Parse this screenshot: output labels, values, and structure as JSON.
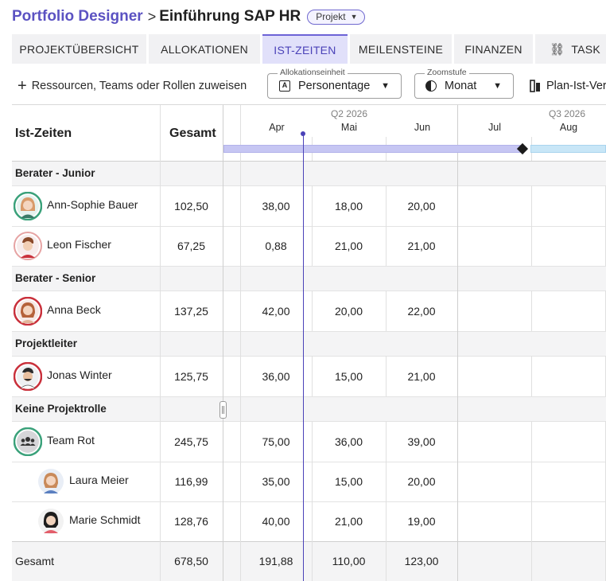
{
  "header": {
    "portfolio_link": "Portfolio Designer",
    "separator": ">",
    "project_title": "Einführung SAP HR",
    "badge_label": "Projekt"
  },
  "tabs": [
    {
      "label": "PROJEKTÜBERSICHT",
      "active": false
    },
    {
      "label": "ALLOKATIONEN",
      "active": false
    },
    {
      "label": "IST-ZEITEN",
      "active": true
    },
    {
      "label": "MEILENSTEINE",
      "active": false
    },
    {
      "label": "FINANZEN",
      "active": false
    },
    {
      "label": "TASK",
      "active": false,
      "icon": "link-icon"
    }
  ],
  "toolbar": {
    "assign_label": "Ressourcen, Teams oder Rollen zuweisen",
    "allocation_unit": {
      "label": "Allokationseinheit",
      "value": "Personentage",
      "icon": "letter-a-box-icon"
    },
    "zoom": {
      "label": "Zoomstufe",
      "value": "Monat",
      "icon": "half-circle-icon"
    },
    "plan_ist_label": "Plan-Ist-Ver"
  },
  "table": {
    "title": "Ist-Zeiten",
    "total_header": "Gesamt",
    "quarters": [
      "Q2 2026",
      "Q3 2026"
    ],
    "months": [
      "Apr",
      "Mai",
      "Jun",
      "Jul",
      "Aug"
    ],
    "groups": [
      {
        "title": "Berater - Junior",
        "rows": [
          {
            "name": "Ann-Sophie Bauer",
            "total": "102,50",
            "values": [
              "38,00",
              "18,00",
              "20,00",
              "",
              ""
            ],
            "ring": "#3aa17a"
          },
          {
            "name": "Leon Fischer",
            "total": "67,25",
            "values": [
              "0,88",
              "21,00",
              "21,00",
              "",
              ""
            ],
            "ring": "#e6a3a3"
          }
        ]
      },
      {
        "title": "Berater - Senior",
        "rows": [
          {
            "name": "Anna Beck",
            "total": "137,25",
            "values": [
              "42,00",
              "20,00",
              "22,00",
              "",
              ""
            ],
            "ring": "#c9303b"
          }
        ]
      },
      {
        "title": "Projektleiter",
        "rows": [
          {
            "name": "Jonas Winter",
            "total": "125,75",
            "values": [
              "36,00",
              "15,00",
              "21,00",
              "",
              ""
            ],
            "ring": "#c9303b"
          }
        ]
      },
      {
        "title": "Keine Projektrolle",
        "rows": [
          {
            "name": "Team Rot",
            "total": "245,75",
            "values": [
              "75,00",
              "36,00",
              "39,00",
              "",
              ""
            ],
            "ring": "#3aa17a",
            "team": true
          },
          {
            "name": "Laura Meier",
            "total": "116,99",
            "values": [
              "35,00",
              "15,00",
              "20,00",
              "",
              ""
            ],
            "indent": true
          },
          {
            "name": "Marie Schmidt",
            "total": "128,76",
            "values": [
              "40,00",
              "21,00",
              "19,00",
              "",
              ""
            ],
            "indent": true
          }
        ]
      }
    ],
    "footer": {
      "label": "Gesamt",
      "total": "678,50",
      "values": [
        "191,88",
        "110,00",
        "123,00",
        "",
        ""
      ]
    }
  },
  "colors": {
    "accent": "#5b52c2",
    "active_tab_bg": "#e1e0fa",
    "gantt_bar": "#c6c6f3",
    "gantt_bar_future": "#c8e6f7"
  }
}
